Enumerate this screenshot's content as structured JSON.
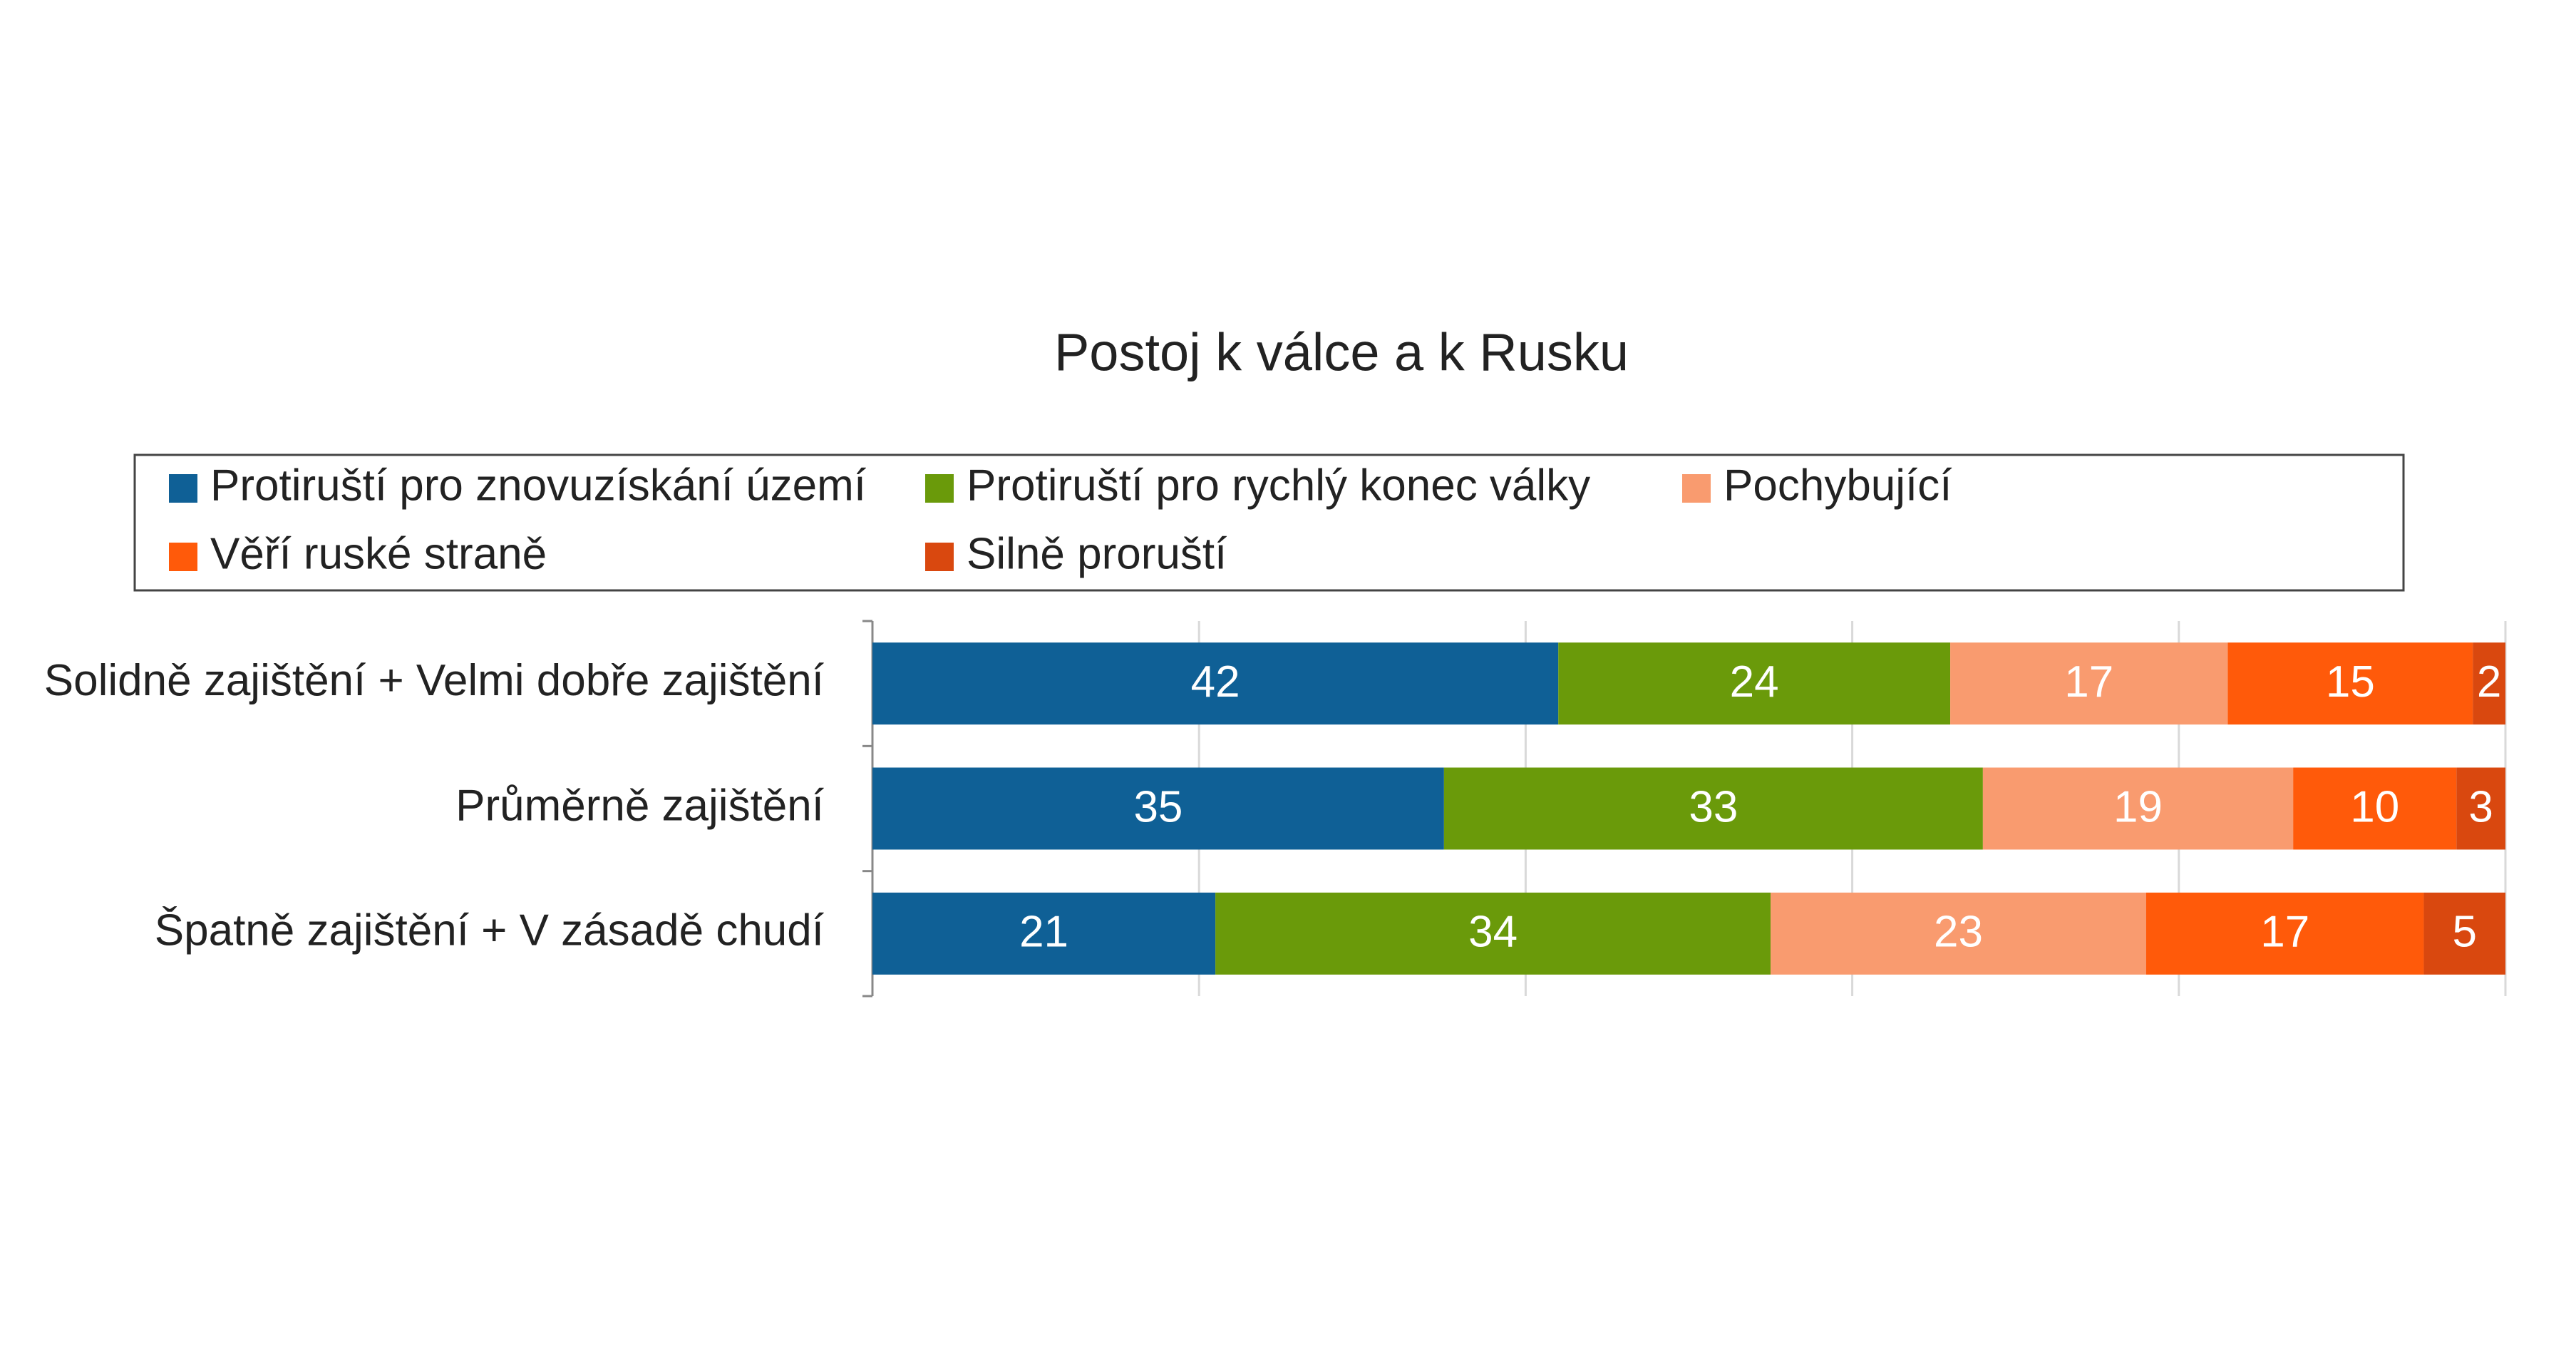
{
  "chart_data": {
    "type": "stacked-bar-horizontal",
    "title": "Postoj k válce a k Rusku",
    "categories": [
      "Solidně zajištění + Velmi dobře zajištění",
      "Průměrně zajištění",
      "Špatně zajištění + V zásadě chudí"
    ],
    "series": [
      {
        "name": "Protiruští pro znovuzískání území",
        "color": "#0f6096",
        "values": [
          42,
          35,
          21
        ]
      },
      {
        "name": "Protiruští pro rychlý konec války",
        "color": "#6a9a0a",
        "values": [
          24,
          33,
          34
        ]
      },
      {
        "name": "Pochybující",
        "color": "#f99b6f",
        "values": [
          17,
          19,
          23
        ]
      },
      {
        "name": "Věří ruské straně",
        "color": "#ff5a0a",
        "values": [
          15,
          10,
          17
        ]
      },
      {
        "name": "Silně proruští",
        "color": "#d9480f",
        "values": [
          2,
          3,
          5
        ]
      }
    ],
    "xlim": [
      0,
      100
    ],
    "xticks": [
      0,
      20,
      40,
      60,
      80,
      100
    ],
    "grid": true
  }
}
